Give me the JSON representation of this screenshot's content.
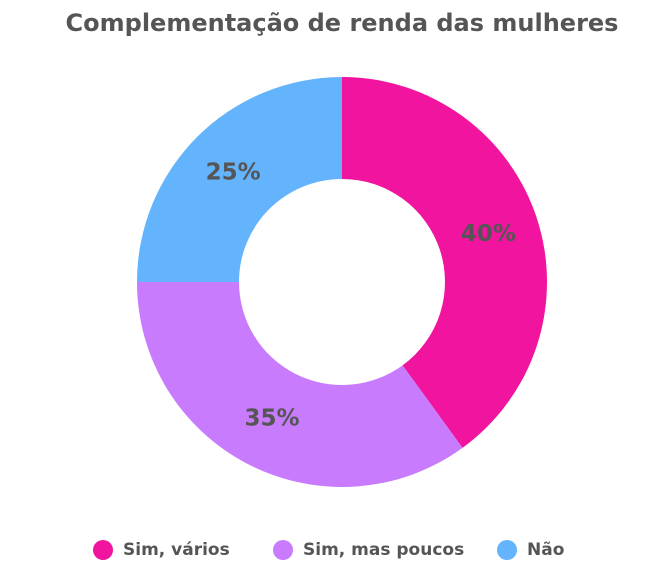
{
  "chart_data": {
    "type": "donut",
    "title": "Complementação de renda das mulheres",
    "categories": [
      "Sim, vários",
      "Sim, mas poucos",
      "Não"
    ],
    "values": [
      40,
      35,
      25
    ],
    "value_labels": [
      "40%",
      "35%",
      "25%"
    ],
    "colors": [
      "#f0149e",
      "#c87bfc",
      "#64b3fd"
    ]
  }
}
